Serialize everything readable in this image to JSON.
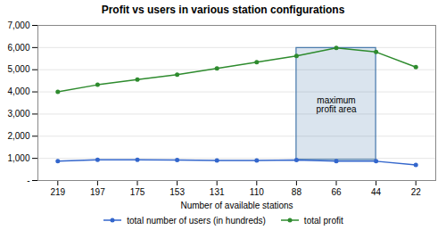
{
  "chart_data": {
    "type": "line",
    "title": "Profit vs users in various station configurations",
    "xlabel": "Number of available stations",
    "categories": [
      "219",
      "197",
      "175",
      "153",
      "131",
      "110",
      "88",
      "66",
      "44",
      "22"
    ],
    "series": [
      {
        "name": "total number of users (in hundreds)",
        "color": "#3366CC",
        "marker": "circle",
        "values": [
          870,
          940,
          940,
          930,
          910,
          910,
          930,
          870,
          870,
          700
        ]
      },
      {
        "name": "total profit",
        "color": "#2E8B2E",
        "marker": "circle",
        "values": [
          4000,
          4320,
          4560,
          4780,
          5060,
          5340,
          5620,
          5980,
          5800,
          5120
        ]
      }
    ],
    "ylim": [
      0,
      7000
    ],
    "yticks": [
      {
        "value": 0,
        "label": "-"
      },
      {
        "value": 1000,
        "label": "1,000"
      },
      {
        "value": 2000,
        "label": "2,000"
      },
      {
        "value": 3000,
        "label": "3,000"
      },
      {
        "value": 4000,
        "label": "4,000"
      },
      {
        "value": 5000,
        "label": "5,000"
      },
      {
        "value": 6000,
        "label": "6,000"
      },
      {
        "value": 7000,
        "label": "7,000"
      }
    ],
    "grid": true,
    "legend": "bottom",
    "shaded_region": {
      "x": [
        "88",
        "44"
      ],
      "y": [
        930,
        5980
      ],
      "color": "#4477AA"
    },
    "annotations": [
      {
        "text": "maximum\nprofit area",
        "x": "66",
        "y": 3400
      }
    ]
  }
}
